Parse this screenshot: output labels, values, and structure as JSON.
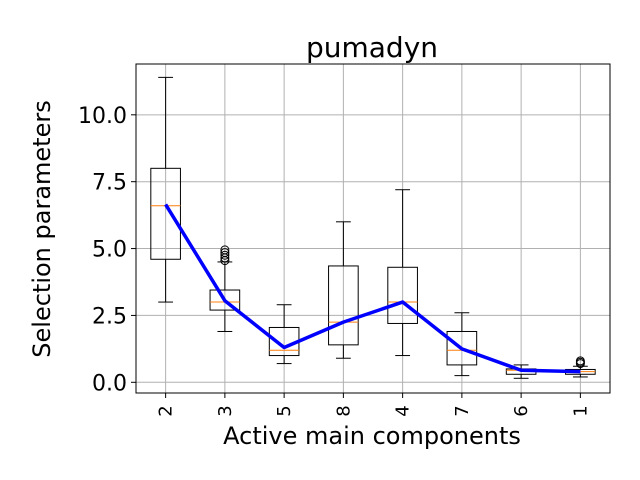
{
  "chart_data": {
    "type": "box",
    "title": "pumadyn",
    "xlabel": "Active main components",
    "ylabel": "Selection parameters",
    "ylim": [
      -0.4,
      11.9
    ],
    "grid": true,
    "yticks": [
      0.0,
      2.5,
      5.0,
      7.5,
      10.0
    ],
    "ytick_labels": [
      "0.0",
      "2.5",
      "5.0",
      "7.5",
      "10.0"
    ],
    "categories": [
      "2",
      "3",
      "5",
      "8",
      "4",
      "7",
      "6",
      "1"
    ],
    "boxes": [
      {
        "whisker_low": 3.0,
        "q1": 4.6,
        "median": 6.6,
        "q3": 8.0,
        "whisker_high": 11.4,
        "outliers": []
      },
      {
        "whisker_low": 1.9,
        "q1": 2.7,
        "median": 3.0,
        "q3": 3.45,
        "whisker_high": 4.5,
        "outliers": [
          4.55,
          4.65,
          4.75,
          4.85,
          4.95
        ]
      },
      {
        "whisker_low": 0.7,
        "q1": 1.0,
        "median": 1.2,
        "q3": 2.05,
        "whisker_high": 2.9,
        "outliers": []
      },
      {
        "whisker_low": 0.9,
        "q1": 1.4,
        "median": 2.25,
        "q3": 4.35,
        "whisker_high": 6.0,
        "outliers": []
      },
      {
        "whisker_low": 1.0,
        "q1": 2.2,
        "median": 3.0,
        "q3": 4.3,
        "whisker_high": 7.2,
        "outliers": []
      },
      {
        "whisker_low": 0.25,
        "q1": 0.65,
        "median": 1.2,
        "q3": 1.9,
        "whisker_high": 2.6,
        "outliers": []
      },
      {
        "whisker_low": 0.15,
        "q1": 0.3,
        "median": 0.45,
        "q3": 0.5,
        "whisker_high": 0.65,
        "outliers": []
      },
      {
        "whisker_low": 0.2,
        "q1": 0.3,
        "median": 0.4,
        "q3": 0.48,
        "whisker_high": 0.6,
        "outliers": [
          0.7,
          0.75,
          0.8
        ]
      }
    ],
    "line": {
      "values": [
        6.65,
        3.05,
        1.3,
        2.25,
        3.0,
        1.25,
        0.45,
        0.4
      ]
    },
    "colors": {
      "line": "#0000ff",
      "median": "#ff7f0e",
      "box": "#000000",
      "grid": "#b0b0b0"
    }
  }
}
